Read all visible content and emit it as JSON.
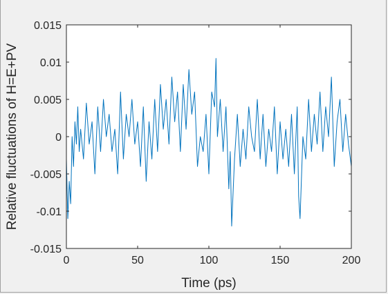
{
  "chart_data": {
    "type": "line",
    "title": "",
    "xlabel": "Time (ps)",
    "ylabel": "Relative fluctuations of H=E+PV",
    "xlim": [
      0,
      200
    ],
    "ylim": [
      -0.015,
      0.015
    ],
    "xticks": [
      0,
      50,
      100,
      150,
      200
    ],
    "yticks": [
      -0.015,
      -0.01,
      -0.005,
      0,
      0.005,
      0.01,
      0.015
    ],
    "xtick_labels": [
      "0",
      "50",
      "100",
      "150",
      "200"
    ],
    "ytick_labels": [
      "-0.015",
      "-0.01",
      "-0.005",
      "0",
      "0.005",
      "0.01",
      "0.015"
    ],
    "grid": false,
    "series": [
      {
        "color": "#0072bd",
        "x": [
          0,
          1,
          2,
          3,
          4,
          5,
          6,
          7,
          8,
          9,
          10,
          12,
          14,
          16,
          18,
          20,
          22,
          24,
          26,
          28,
          30,
          32,
          34,
          36,
          38,
          40,
          42,
          44,
          46,
          48,
          50,
          52,
          54,
          56,
          58,
          60,
          62,
          64,
          66,
          68,
          70,
          72,
          74,
          76,
          78,
          80,
          82,
          84,
          86,
          88,
          90,
          92,
          94,
          96,
          98,
          100,
          102,
          104,
          105,
          106,
          108,
          110,
          112,
          114,
          115,
          116,
          118,
          120,
          122,
          124,
          126,
          128,
          130,
          132,
          134,
          136,
          138,
          140,
          142,
          144,
          146,
          148,
          150,
          152,
          154,
          156,
          158,
          160,
          162,
          163,
          164,
          166,
          168,
          170,
          172,
          174,
          176,
          178,
          180,
          182,
          184,
          186,
          188,
          190,
          192,
          194,
          196,
          198,
          200
        ],
        "y": [
          -0.003,
          -0.011,
          -0.006,
          -0.009,
          0.0,
          -0.004,
          0.002,
          -0.001,
          0.004,
          -0.002,
          0.001,
          -0.003,
          0.0045,
          -0.001,
          0.002,
          -0.005,
          0.004,
          -0.002,
          0.005,
          0.0,
          0.003,
          -0.002,
          0.001,
          -0.005,
          0.006,
          -0.003,
          0.003,
          0.0,
          0.005,
          -0.001,
          0.002,
          -0.004,
          0.004,
          -0.006,
          0.002,
          -0.003,
          0.005,
          -0.002,
          0.007,
          0.001,
          0.005,
          -0.001,
          0.008,
          0.002,
          0.006,
          -0.002,
          0.007,
          0.001,
          0.009,
          0.003,
          0.006,
          -0.004,
          0.0,
          -0.002,
          0.003,
          -0.005,
          0.006,
          0.004,
          0.0105,
          0.0,
          0.005,
          -0.002,
          0.004,
          -0.007,
          -0.002,
          -0.012,
          -0.003,
          0.003,
          -0.004,
          0.001,
          -0.003,
          0.004,
          0.0,
          -0.002,
          0.005,
          -0.003,
          0.003,
          -0.004,
          0.001,
          -0.002,
          0.004,
          -0.005,
          0.002,
          -0.003,
          0.001,
          -0.004,
          0.003,
          -0.005,
          0.004,
          -0.008,
          -0.011,
          0.0,
          -0.003,
          0.005,
          -0.002,
          0.003,
          -0.001,
          0.006,
          -0.002,
          0.004,
          0.0,
          0.008,
          -0.004,
          0.002,
          0.005,
          -0.002,
          0.003,
          -0.001,
          -0.004
        ]
      }
    ]
  }
}
